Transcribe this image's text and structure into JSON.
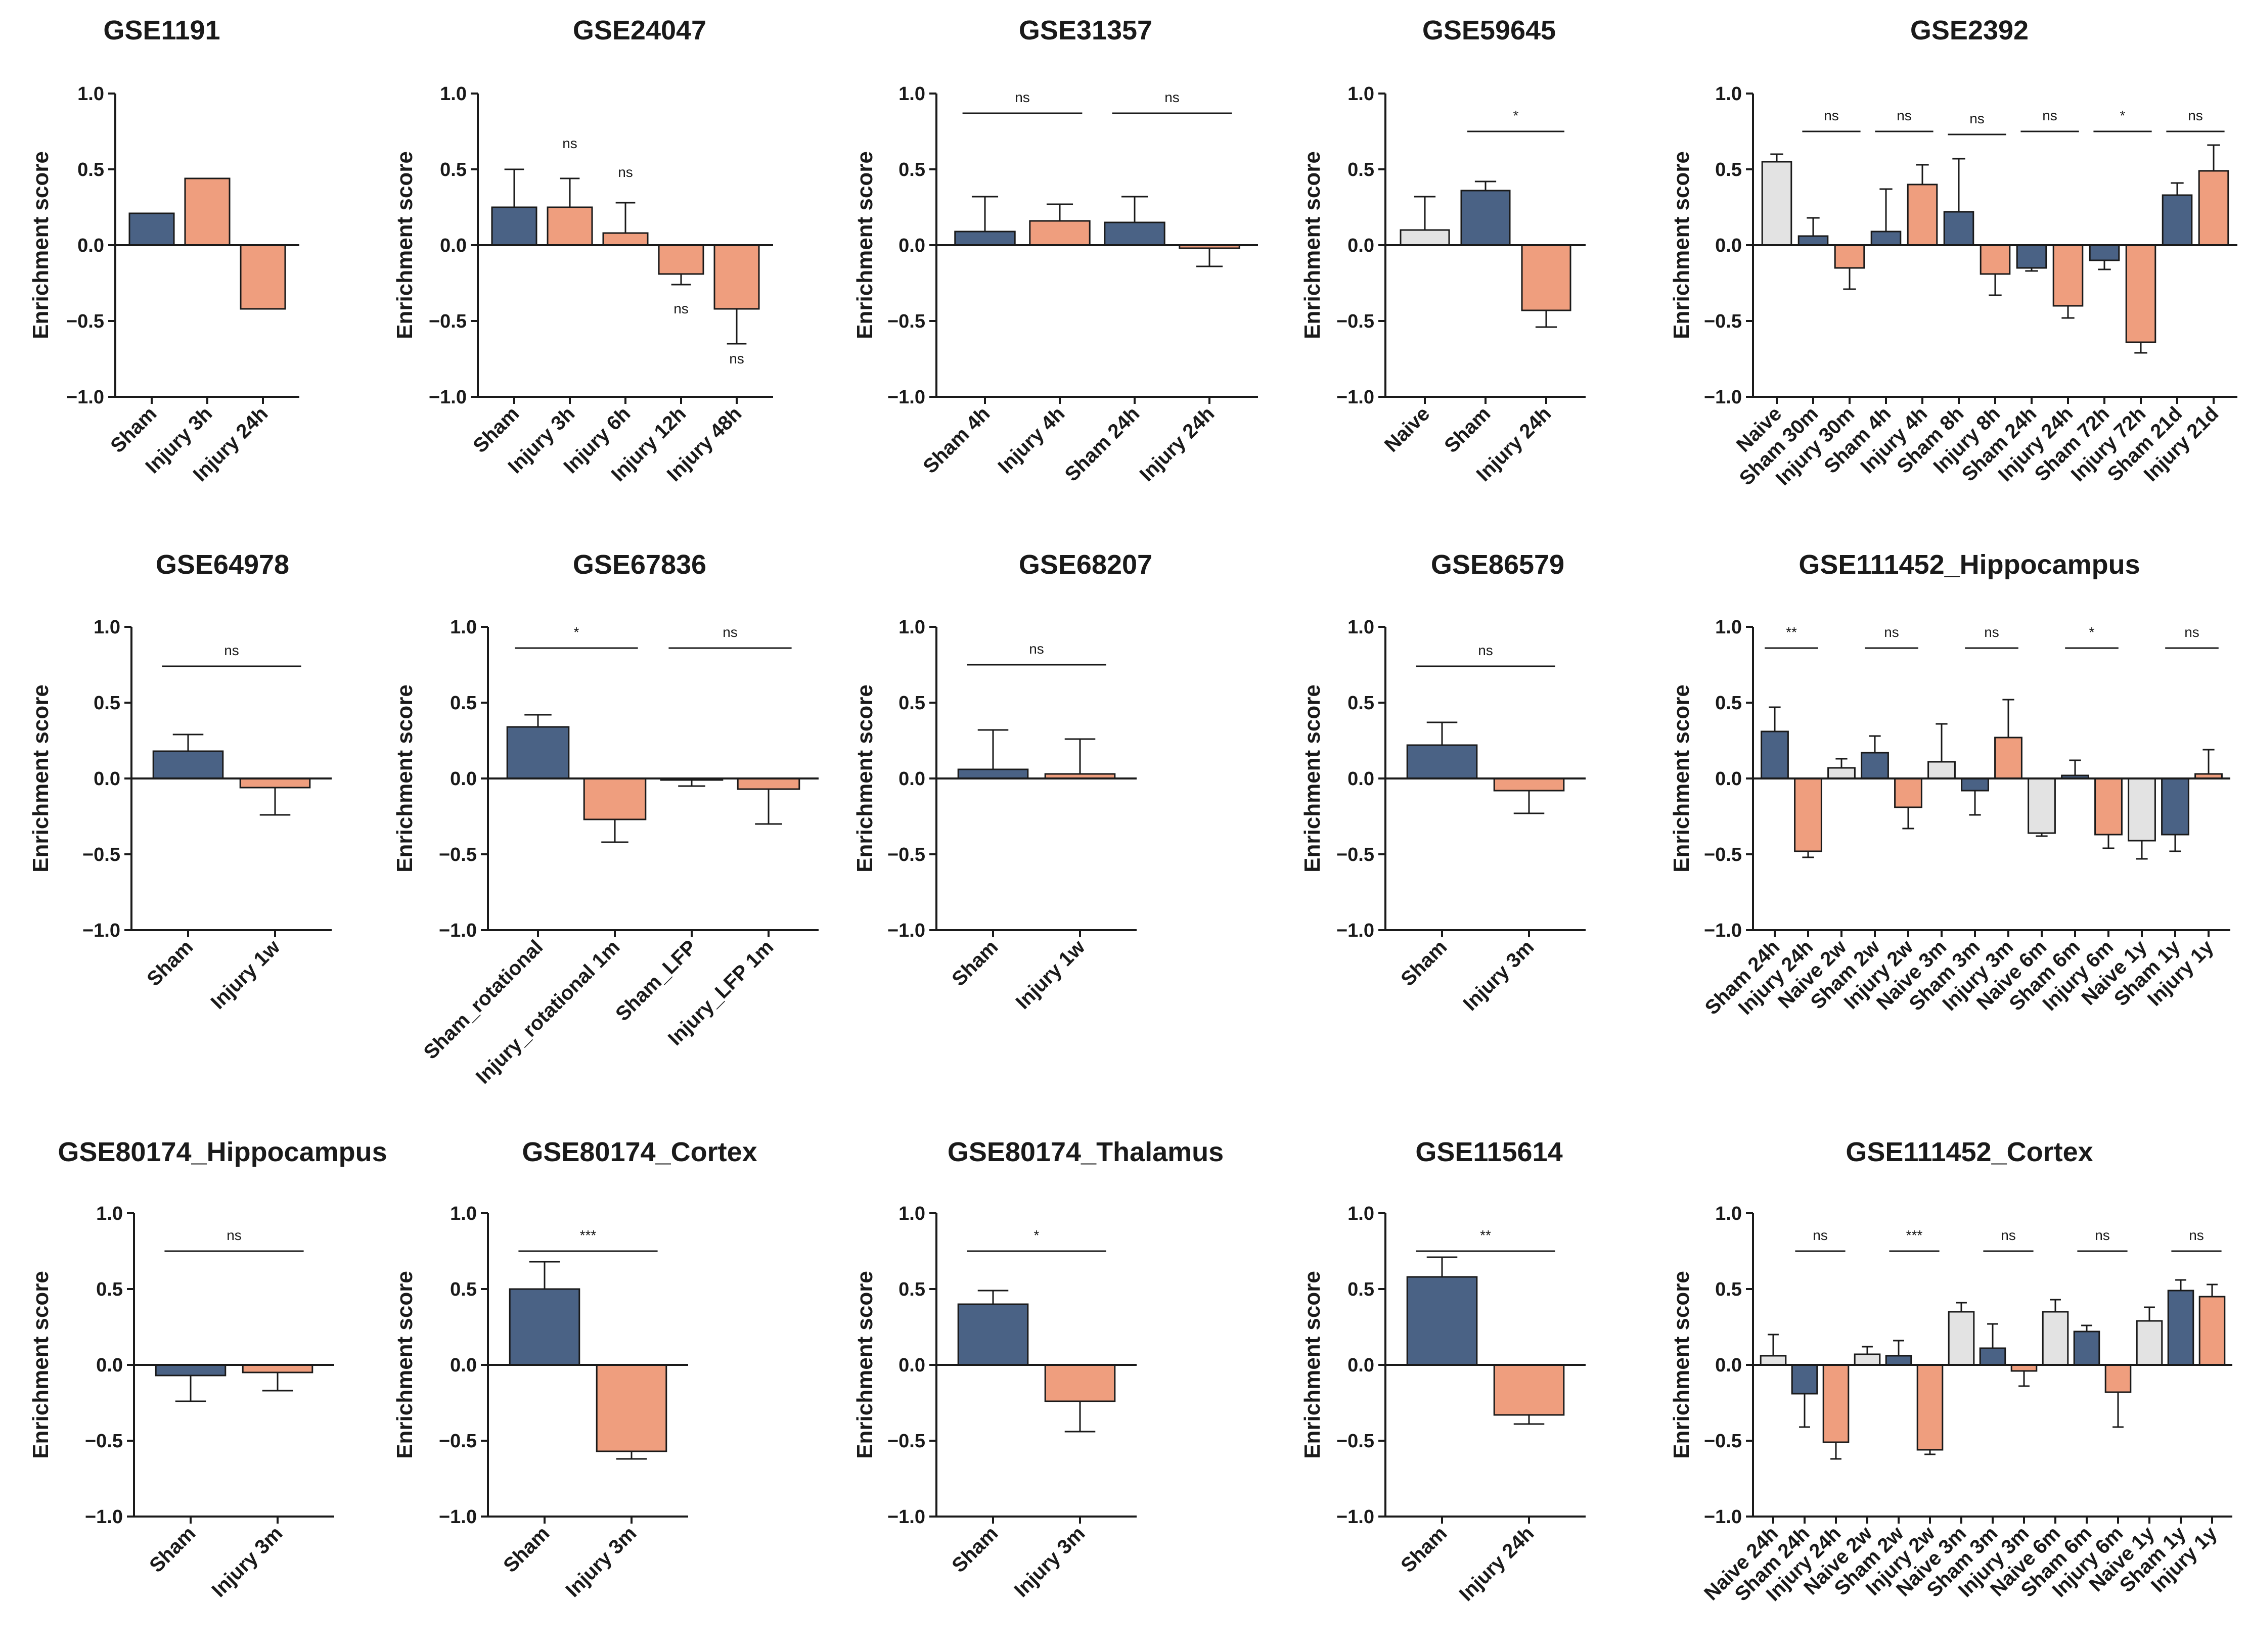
{
  "figure_title": "Enrichment score per TBI dataset",
  "colors": {
    "sham": "#4a6285",
    "injury": "#ef9e7e",
    "naive": "#e3e3e3",
    "axis": "#1a1a1a",
    "edge": "#1a1a1a"
  },
  "chart_data": [
    {
      "type": "bar",
      "title": "GSE1191",
      "ylabel": "Enrichment score",
      "ylim": [
        -1.0,
        1.0
      ],
      "yticks": [
        "1.0",
        "0.5",
        "0.0",
        "−0.5",
        "−1.0"
      ],
      "categories": [
        "Sham",
        "Injury 3h",
        "Injury 24h"
      ],
      "groups": [
        "sham",
        "injury",
        "injury"
      ],
      "values": [
        0.21,
        0.44,
        -0.42
      ],
      "errors": [
        null,
        null,
        null
      ],
      "annotations": []
    },
    {
      "type": "bar",
      "title": "GSE24047",
      "ylabel": "Enrichment score",
      "ylim": [
        -1.0,
        1.0
      ],
      "yticks": [
        "1.0",
        "0.5",
        "0.0",
        "−0.5",
        "−1.0"
      ],
      "categories": [
        "Sham",
        "Injury 3h",
        "Injury 6h",
        "Injury 12h",
        "Injury 48h"
      ],
      "groups": [
        "sham",
        "injury",
        "injury",
        "injury",
        "injury"
      ],
      "values": [
        0.25,
        0.25,
        0.08,
        -0.19,
        -0.42
      ],
      "errors": [
        0.25,
        0.19,
        0.2,
        0.07,
        0.23
      ],
      "annotations": [
        {
          "text": "ns",
          "at": 1,
          "y": 0.64
        },
        {
          "text": "ns",
          "at": 2,
          "y": 0.45
        },
        {
          "text": "ns",
          "at": 3,
          "y": -0.45
        },
        {
          "text": "ns",
          "at": 4,
          "y": -0.78
        }
      ]
    },
    {
      "type": "bar",
      "title": "GSE31357",
      "ylabel": "Enrichment score",
      "ylim": [
        -1.0,
        1.0
      ],
      "yticks": [
        "1.0",
        "0.5",
        "0.0",
        "−0.5",
        "−1.0"
      ],
      "categories": [
        "Sham 4h",
        "Injury 4h",
        "Sham 24h",
        "Injury 24h"
      ],
      "groups": [
        "sham",
        "injury",
        "sham",
        "injury"
      ],
      "values": [
        0.09,
        0.16,
        0.15,
        -0.02
      ],
      "errors": [
        0.23,
        0.11,
        0.17,
        0.12
      ],
      "annotations": [
        {
          "text": "ns",
          "from": 0,
          "to": 1,
          "y": 0.87
        },
        {
          "text": "ns",
          "from": 2,
          "to": 3,
          "y": 0.87
        }
      ]
    },
    {
      "type": "bar",
      "title": "GSE59645",
      "ylabel": "Enrichment score",
      "ylim": [
        -1.0,
        1.0
      ],
      "yticks": [
        "1.0",
        "0.5",
        "0.0",
        "−0.5",
        "−1.0"
      ],
      "categories": [
        "Naive",
        "Sham",
        "Injury 24h"
      ],
      "groups": [
        "naive",
        "sham",
        "injury"
      ],
      "values": [
        0.1,
        0.36,
        -0.43
      ],
      "errors": [
        0.22,
        0.06,
        0.11
      ],
      "annotations": [
        {
          "text": "*",
          "from": 1,
          "to": 2,
          "y": 0.75
        }
      ]
    },
    {
      "type": "bar",
      "title": "GSE2392",
      "ylabel": "Enrichment score",
      "ylim": [
        -1.0,
        1.0
      ],
      "yticks": [
        "1.0",
        "0.5",
        "0.0",
        "−0.5",
        "−1.0"
      ],
      "categories": [
        "Naive",
        "Sham 30m",
        "Injury 30m",
        "Sham 4h",
        "Injury 4h",
        "Sham 8h",
        "Injury 8h",
        "Sham 24h",
        "Injury 24h",
        "Sham 72h",
        "Injury 72h",
        "Sham 21d",
        "Injury 21d"
      ],
      "groups": [
        "naive",
        "sham",
        "injury",
        "sham",
        "injury",
        "sham",
        "injury",
        "sham",
        "injury",
        "sham",
        "injury",
        "sham",
        "injury"
      ],
      "values": [
        0.55,
        0.06,
        -0.15,
        0.09,
        0.4,
        0.22,
        -0.19,
        -0.15,
        -0.4,
        -0.1,
        -0.64,
        0.33,
        0.49
      ],
      "errors": [
        0.05,
        0.12,
        0.14,
        0.28,
        0.13,
        0.35,
        0.14,
        0.02,
        0.08,
        0.06,
        0.07,
        0.08,
        0.17
      ],
      "annotations": [
        {
          "text": "ns",
          "from": 1,
          "to": 2,
          "y": 0.75
        },
        {
          "text": "ns",
          "from": 3,
          "to": 4,
          "y": 0.75
        },
        {
          "text": "ns",
          "from": 5,
          "to": 6,
          "y": 0.73
        },
        {
          "text": "ns",
          "from": 7,
          "to": 8,
          "y": 0.75
        },
        {
          "text": "*",
          "from": 9,
          "to": 10,
          "y": 0.75
        },
        {
          "text": "ns",
          "from": 11,
          "to": 12,
          "y": 0.75
        }
      ]
    },
    {
      "type": "bar",
      "title": "GSE64978",
      "ylabel": "Enrichment score",
      "ylim": [
        -1.0,
        1.0
      ],
      "yticks": [
        "1.0",
        "0.5",
        "0.0",
        "−0.5",
        "−1.0"
      ],
      "categories": [
        "Sham",
        "Injury 1w"
      ],
      "groups": [
        "sham",
        "injury"
      ],
      "values": [
        0.18,
        -0.06
      ],
      "errors": [
        0.11,
        0.18
      ],
      "annotations": [
        {
          "text": "ns",
          "from": 0,
          "to": 1,
          "y": 0.74
        }
      ]
    },
    {
      "type": "bar",
      "title": "GSE67836",
      "ylabel": "Enrichment score",
      "ylim": [
        -1.0,
        1.0
      ],
      "yticks": [
        "1.0",
        "0.5",
        "0.0",
        "−0.5",
        "−1.0"
      ],
      "categories": [
        "Sham_rotational",
        "Injury_rotational 1m",
        "Sham_LFP",
        "Injury_LFP 1m"
      ],
      "groups": [
        "sham",
        "injury",
        "sham",
        "injury"
      ],
      "values": [
        0.34,
        -0.27,
        -0.01,
        -0.07
      ],
      "errors": [
        0.08,
        0.15,
        0.04,
        0.23
      ],
      "annotations": [
        {
          "text": "*",
          "from": 0,
          "to": 1,
          "y": 0.86
        },
        {
          "text": "ns",
          "from": 2,
          "to": 3,
          "y": 0.86
        }
      ]
    },
    {
      "type": "bar",
      "title": "GSE68207",
      "ylabel": "Enrichment score",
      "ylim": [
        -1.0,
        1.0
      ],
      "yticks": [
        "1.0",
        "0.5",
        "0.0",
        "−0.5",
        "−1.0"
      ],
      "categories": [
        "Sham",
        "Injury 1w"
      ],
      "groups": [
        "sham",
        "injury"
      ],
      "values": [
        0.06,
        0.03
      ],
      "errors": [
        0.26,
        0.23
      ],
      "annotations": [
        {
          "text": "ns",
          "from": 0,
          "to": 1,
          "y": 0.75
        }
      ]
    },
    {
      "type": "bar",
      "title": "GSE86579",
      "ylabel": "Enrichment score",
      "ylim": [
        -1.0,
        1.0
      ],
      "yticks": [
        "1.0",
        "0.5",
        "0.0",
        "−0.5",
        "−1.0"
      ],
      "categories": [
        "Sham",
        "Injury 3m"
      ],
      "groups": [
        "sham",
        "injury"
      ],
      "values": [
        0.22,
        -0.08
      ],
      "errors": [
        0.15,
        0.15
      ],
      "annotations": [
        {
          "text": "ns",
          "from": 0,
          "to": 1,
          "y": 0.74
        }
      ]
    },
    {
      "type": "bar",
      "title": "GSE111452_Hippocampus",
      "ylabel": "Enrichment score",
      "ylim": [
        -1.0,
        1.0
      ],
      "yticks": [
        "1.0",
        "0.5",
        "0.0",
        "−0.5",
        "−1.0"
      ],
      "categories": [
        "Sham 24h",
        "Injury 24h",
        "Naive 2w",
        "Sham 2w",
        "Injury 2w",
        "Naive 3m",
        "Sham 3m",
        "Injury 3m",
        "Naive 6m",
        "Sham 6m",
        "Injury 6m",
        "Naive 1y",
        "Sham 1y",
        "Injury 1y"
      ],
      "groups": [
        "sham",
        "injury",
        "naive",
        "sham",
        "injury",
        "naive",
        "sham",
        "injury",
        "naive",
        "sham",
        "injury",
        "naive",
        "sham",
        "injury"
      ],
      "values": [
        0.31,
        -0.48,
        0.07,
        0.17,
        -0.19,
        0.11,
        -0.08,
        0.27,
        -0.36,
        0.02,
        -0.37,
        -0.41,
        -0.37,
        0.03
      ],
      "errors": [
        0.16,
        0.04,
        0.06,
        0.11,
        0.14,
        0.25,
        0.16,
        0.25,
        0.02,
        0.1,
        0.09,
        0.12,
        0.11,
        0.16
      ],
      "annotations": [
        {
          "text": "**",
          "from": 0,
          "to": 1,
          "y": 0.86
        },
        {
          "text": "ns",
          "from": 3,
          "to": 4,
          "y": 0.86
        },
        {
          "text": "ns",
          "from": 6,
          "to": 7,
          "y": 0.86
        },
        {
          "text": "*",
          "from": 9,
          "to": 10,
          "y": 0.86
        },
        {
          "text": "ns",
          "from": 12,
          "to": 13,
          "y": 0.86
        }
      ]
    },
    {
      "type": "bar",
      "title": "GSE80174_Hippocampus",
      "ylabel": "Enrichment score",
      "ylim": [
        -1.0,
        1.0
      ],
      "yticks": [
        "1.0",
        "0.5",
        "0.0",
        "−0.5",
        "−1.0"
      ],
      "categories": [
        "Sham",
        "Injury 3m"
      ],
      "groups": [
        "sham",
        "injury"
      ],
      "values": [
        -0.07,
        -0.05
      ],
      "errors": [
        0.17,
        0.12
      ],
      "annotations": [
        {
          "text": "ns",
          "from": 0,
          "to": 1,
          "y": 0.75
        }
      ]
    },
    {
      "type": "bar",
      "title": "GSE80174_Cortex",
      "ylabel": "Enrichment score",
      "ylim": [
        -1.0,
        1.0
      ],
      "yticks": [
        "1.0",
        "0.5",
        "0.0",
        "−0.5",
        "−1.0"
      ],
      "categories": [
        "Sham",
        "Injury 3m"
      ],
      "groups": [
        "sham",
        "injury"
      ],
      "values": [
        0.5,
        -0.57
      ],
      "errors": [
        0.18,
        0.05
      ],
      "annotations": [
        {
          "text": "***",
          "from": 0,
          "to": 1,
          "y": 0.75
        }
      ]
    },
    {
      "type": "bar",
      "title": "GSE80174_Thalamus",
      "ylabel": "Enrichment score",
      "ylim": [
        -1.0,
        1.0
      ],
      "yticks": [
        "1.0",
        "0.5",
        "0.0",
        "−0.5",
        "−1.0"
      ],
      "categories": [
        "Sham",
        "Injury 3m"
      ],
      "groups": [
        "sham",
        "injury"
      ],
      "values": [
        0.4,
        -0.24
      ],
      "errors": [
        0.09,
        0.2
      ],
      "annotations": [
        {
          "text": "*",
          "from": 0,
          "to": 1,
          "y": 0.75
        }
      ]
    },
    {
      "type": "bar",
      "title": "GSE115614",
      "ylabel": "Enrichment score",
      "ylim": [
        -1.0,
        1.0
      ],
      "yticks": [
        "1.0",
        "0.5",
        "0.0",
        "−0.5",
        "−1.0"
      ],
      "categories": [
        "Sham",
        "Injury 24h"
      ],
      "groups": [
        "sham",
        "injury"
      ],
      "values": [
        0.58,
        -0.33
      ],
      "errors": [
        0.13,
        0.06
      ],
      "annotations": [
        {
          "text": "**",
          "from": 0,
          "to": 1,
          "y": 0.75
        }
      ]
    },
    {
      "type": "bar",
      "title": "GSE111452_Cortex",
      "ylabel": "Enrichment score",
      "ylim": [
        -1.0,
        1.0
      ],
      "yticks": [
        "1.0",
        "0.5",
        "0.0",
        "−0.5",
        "−1.0"
      ],
      "categories": [
        "Naive 24h",
        "Sham 24h",
        "Injury 24h",
        "Naive 2w",
        "Sham 2w",
        "Injury 2w",
        "Naive 3m",
        "Sham 3m",
        "Injury 3m",
        "Naive 6m",
        "Sham 6m",
        "Injury 6m",
        "Naive 1y",
        "Sham 1y",
        "Injury 1y"
      ],
      "groups": [
        "naive",
        "sham",
        "injury",
        "naive",
        "sham",
        "injury",
        "naive",
        "sham",
        "injury",
        "naive",
        "sham",
        "injury",
        "naive",
        "sham",
        "injury"
      ],
      "values": [
        0.06,
        -0.19,
        -0.51,
        0.07,
        0.06,
        -0.56,
        0.35,
        0.11,
        -0.04,
        0.35,
        0.22,
        -0.18,
        0.29,
        0.49,
        0.45
      ],
      "errors": [
        0.14,
        0.22,
        0.11,
        0.05,
        0.1,
        0.03,
        0.06,
        0.16,
        0.1,
        0.08,
        0.04,
        0.23,
        0.09,
        0.07,
        0.08
      ],
      "annotations": [
        {
          "text": "ns",
          "from": 1,
          "to": 2,
          "y": 0.75
        },
        {
          "text": "***",
          "from": 4,
          "to": 5,
          "y": 0.75
        },
        {
          "text": "ns",
          "from": 7,
          "to": 8,
          "y": 0.75
        },
        {
          "text": "ns",
          "from": 10,
          "to": 11,
          "y": 0.75
        },
        {
          "text": "ns",
          "from": 13,
          "to": 14,
          "y": 0.75
        }
      ]
    }
  ]
}
